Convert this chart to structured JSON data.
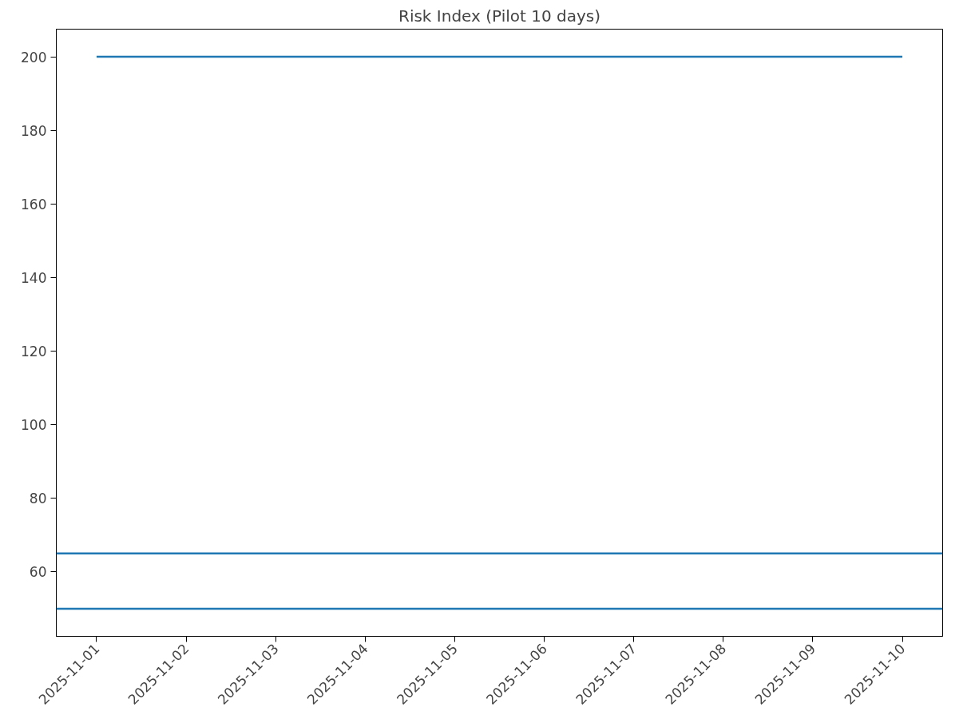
{
  "chart_data": {
    "type": "line",
    "title": "Risk Index (Pilot 10 days)",
    "x": [
      "2025-11-01",
      "2025-11-02",
      "2025-11-03",
      "2025-11-04",
      "2025-11-05",
      "2025-11-06",
      "2025-11-07",
      "2025-11-08",
      "2025-11-09",
      "2025-11-10"
    ],
    "series": [
      {
        "color": "#1f77b4",
        "values": [
          200,
          200,
          200,
          200,
          200,
          200,
          200,
          200,
          200,
          200
        ]
      }
    ],
    "ref_lines": [
      {
        "axis": "y",
        "value": 65,
        "color": "#1f77b4",
        "line_style": "solid"
      },
      {
        "axis": "y",
        "value": 50,
        "color": "#1f77b4",
        "line_style": "solid"
      }
    ],
    "xlim": [
      "2025-10-31T13:12",
      "2025-11-10T10:48"
    ],
    "xticks": [
      "2025-11-01",
      "2025-11-02",
      "2025-11-03",
      "2025-11-04",
      "2025-11-05",
      "2025-11-06",
      "2025-11-07",
      "2025-11-08",
      "2025-11-09",
      "2025-11-10"
    ],
    "ylim": [
      42.5,
      207.5
    ],
    "yticks": [
      60,
      80,
      100,
      120,
      140,
      160,
      180,
      200
    ],
    "grid": false
  }
}
